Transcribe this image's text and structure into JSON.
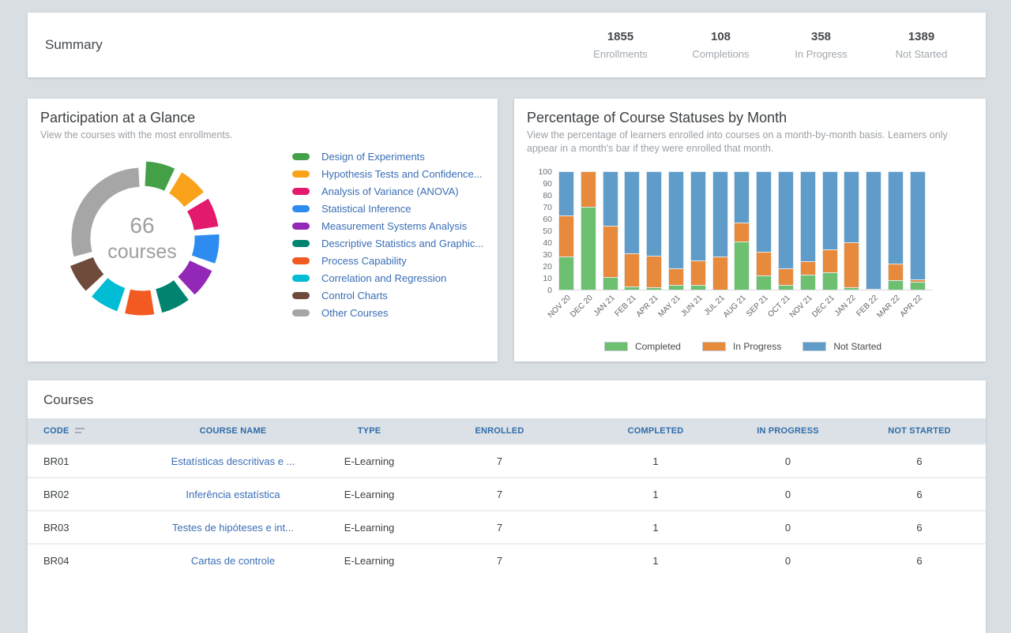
{
  "summary": {
    "title": "Summary",
    "stats": [
      {
        "value": "1855",
        "label": "Enrollments"
      },
      {
        "value": "108",
        "label": "Completions"
      },
      {
        "value": "358",
        "label": "In Progress"
      },
      {
        "value": "1389",
        "label": "Not Started"
      }
    ]
  },
  "chart_data": [
    {
      "type": "pie",
      "variant": "donut",
      "title": "Participation at a Glance",
      "subtitle": "View the courses with the most enrollments.",
      "center_value": "66",
      "center_label": "courses",
      "gap_deg": 6,
      "segments": [
        {
          "label": "Design of Experiments",
          "color": "#43a047",
          "arc_deg": 22
        },
        {
          "label": "Hypothesis Tests and Confidence...",
          "color": "#f9a21a",
          "arc_deg": 22
        },
        {
          "label": "Analysis of Variance (ANOVA)",
          "color": "#e3196e",
          "arc_deg": 22
        },
        {
          "label": "Statistical Inference",
          "color": "#2e8bf0",
          "arc_deg": 22
        },
        {
          "label": "Measurement Systems Analysis",
          "color": "#9327b8",
          "arc_deg": 22
        },
        {
          "label": "Descriptive Statistics and Graphic...",
          "color": "#00846f",
          "arc_deg": 22
        },
        {
          "label": "Process Capability",
          "color": "#f35a21",
          "arc_deg": 22
        },
        {
          "label": "Correlation and Regression",
          "color": "#00bcd4",
          "arc_deg": 22
        },
        {
          "label": "Control Charts",
          "color": "#6e4b3b",
          "arc_deg": 22
        },
        {
          "label": "Other Courses",
          "color": "#a6a6a6",
          "arc_deg": 102
        }
      ]
    },
    {
      "type": "bar",
      "stacked": true,
      "percent": true,
      "title": "Percentage of Course Statuses by Month",
      "subtitle": "View the percentage of learners enrolled into courses on a month-by-month basis. Learners only appear in a month's bar if they were enrolled that month.",
      "categories": [
        "NOV 20",
        "DEC 20",
        "JAN 21",
        "FEB 21",
        "APR 21",
        "MAY 21",
        "JUN 21",
        "JUL 21",
        "AUG 21",
        "SEP 21",
        "OCT 21",
        "NOV 21",
        "DEC 21",
        "JAN 22",
        "FEB 22",
        "MAR 22",
        "APR 22"
      ],
      "series": [
        {
          "name": "Completed",
          "color": "#6ec071",
          "values": [
            28,
            70,
            11,
            3,
            2,
            4,
            4,
            0,
            41,
            12,
            4,
            13,
            15,
            2,
            0,
            8,
            7
          ]
        },
        {
          "name": "In Progress",
          "color": "#e78a3b",
          "values": [
            35,
            30,
            43,
            28,
            27,
            14,
            21,
            28,
            16,
            20,
            14,
            11,
            19,
            38,
            1,
            14,
            2
          ]
        },
        {
          "name": "Not Started",
          "color": "#5f9cc9",
          "values": [
            37,
            0,
            46,
            69,
            71,
            82,
            75,
            72,
            43,
            68,
            82,
            76,
            66,
            60,
            99,
            78,
            91
          ]
        }
      ],
      "ylim": [
        0,
        100
      ],
      "yticks": [
        0,
        10,
        20,
        30,
        40,
        50,
        60,
        70,
        80,
        90,
        100
      ],
      "legend_position": "bottom"
    }
  ],
  "courses_table": {
    "title": "Courses",
    "columns": [
      "CODE",
      "COURSE NAME",
      "TYPE",
      "ENROLLED",
      "COMPLETED",
      "IN PROGRESS",
      "NOT STARTED"
    ],
    "rows": [
      {
        "code": "BR01",
        "name": "Estatísticas descritivas e ...",
        "type": "E-Learning",
        "enrolled": "7",
        "completed": "1",
        "in_progress": "0",
        "not_started": "6"
      },
      {
        "code": "BR02",
        "name": "Inferência estatística",
        "type": "E-Learning",
        "enrolled": "7",
        "completed": "1",
        "in_progress": "0",
        "not_started": "6"
      },
      {
        "code": "BR03",
        "name": "Testes de hipóteses e int...",
        "type": "E-Learning",
        "enrolled": "7",
        "completed": "1",
        "in_progress": "0",
        "not_started": "6"
      },
      {
        "code": "BR04",
        "name": "Cartas de controle",
        "type": "E-Learning",
        "enrolled": "7",
        "completed": "1",
        "in_progress": "0",
        "not_started": "6"
      }
    ]
  }
}
